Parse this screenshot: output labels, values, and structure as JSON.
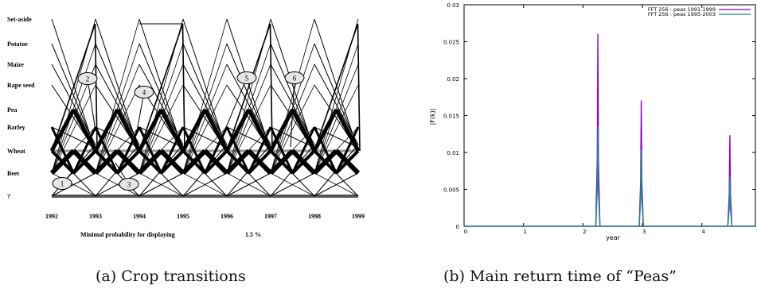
{
  "captions": {
    "a": "(a) Crop transitions",
    "b": "(b) Main return time of “Peas”"
  },
  "chart_data": [
    {
      "type": "diagram",
      "title": "",
      "crops": [
        "Set-aside",
        "Potatoe",
        "Maize",
        "Rape seed",
        "Pea",
        "Barley",
        "Wheat",
        "Beet",
        "?"
      ],
      "years": [
        "1992",
        "1993",
        "1994",
        "1995",
        "1996",
        "1997",
        "1998",
        "1999"
      ],
      "footer_label": "Minimal probability for displaying",
      "footer_value": "1.5 %",
      "callouts": [
        "1",
        "2",
        "3",
        "4",
        "5",
        "6"
      ],
      "thick_transitions": [
        {
          "from": "Wheat",
          "to": "Pea"
        },
        {
          "from": "Pea",
          "to": "Wheat"
        },
        {
          "from": "Beet",
          "to": "Wheat"
        },
        {
          "from": "Wheat",
          "to": "Beet"
        }
      ],
      "colors": {
        "line": "#000000",
        "gray_track": "#9a9a9a",
        "baseline": "#555555",
        "callout_fill": "#e6e6e6"
      }
    },
    {
      "type": "line",
      "title": "",
      "xlabel": "year",
      "ylabel": "|F(k)|",
      "xlim": [
        0,
        4.9
      ],
      "ylim": [
        0,
        0.03
      ],
      "x_ticks": [
        0,
        1,
        2,
        3,
        4
      ],
      "y_ticks": [
        0,
        0.005,
        0.01,
        0.015,
        0.02,
        0.025,
        0.03
      ],
      "y_tick_labels": [
        "0",
        "0.005",
        "0.01",
        "0.015",
        "0.02",
        "0.025",
        "0.03"
      ],
      "legend_position": "top-right",
      "series": [
        {
          "name": "FFT 256 : peas 1991-1999",
          "color": "#8b00d4",
          "peaks": [
            {
              "x": 2.25,
              "y": 0.026
            },
            {
              "x": 2.98,
              "y": 0.017
            },
            {
              "x": 4.47,
              "y": 0.0123
            }
          ]
        },
        {
          "name": "FFT 256 : peas 1995-2003",
          "color": "#1f8a8a",
          "peaks": [
            {
              "x": 2.25,
              "y": 0.0135
            },
            {
              "x": 2.98,
              "y": 0.0103
            },
            {
              "x": 4.47,
              "y": 0.0066
            }
          ]
        }
      ]
    }
  ]
}
